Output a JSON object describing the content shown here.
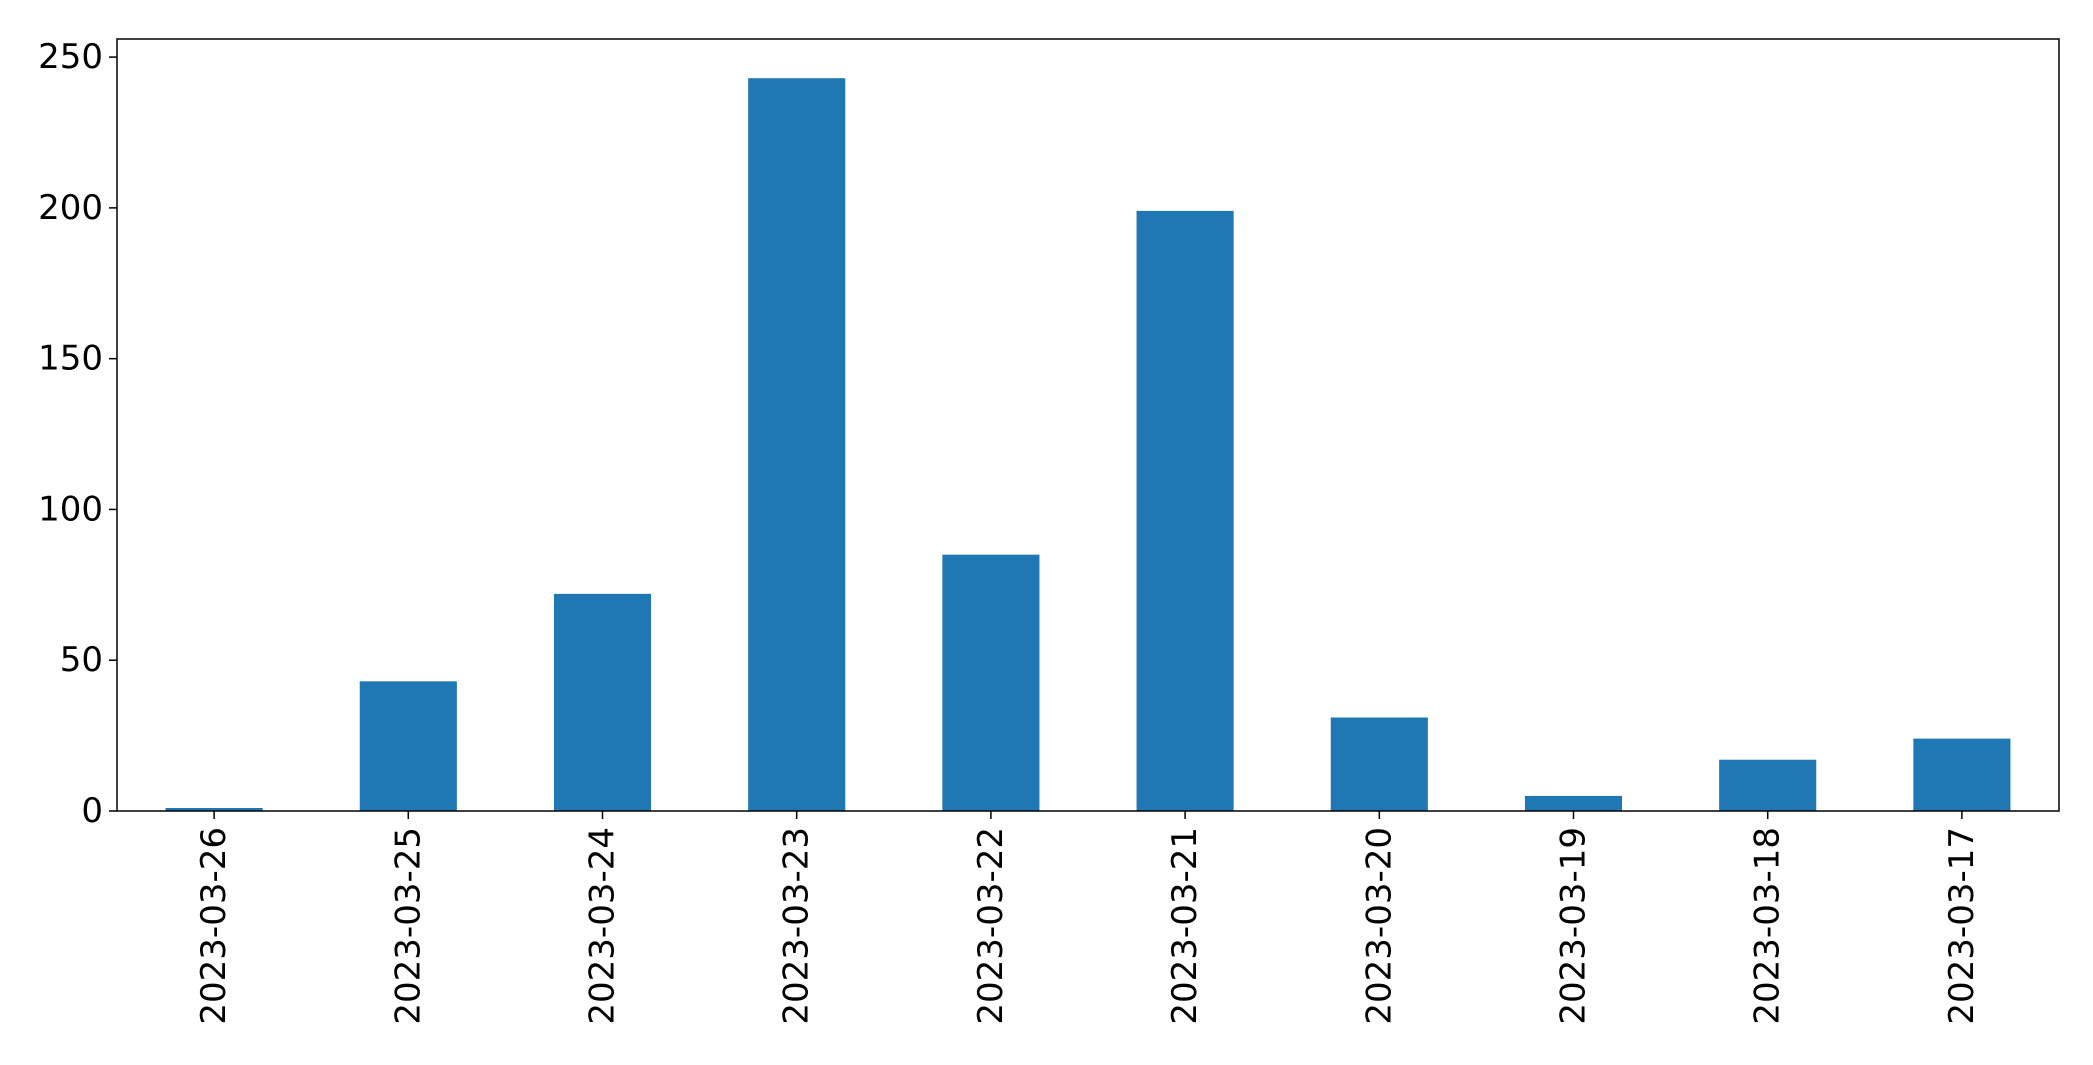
{
  "chart_data": {
    "type": "bar",
    "title": "",
    "xlabel": "",
    "ylabel": "",
    "categories": [
      "2023-03-26",
      "2023-03-25",
      "2023-03-24",
      "2023-03-23",
      "2023-03-22",
      "2023-03-21",
      "2023-03-20",
      "2023-03-19",
      "2023-03-18",
      "2023-03-17"
    ],
    "values": [
      1,
      43,
      72,
      243,
      85,
      199,
      31,
      5,
      17,
      24
    ],
    "ylim": [
      0,
      256
    ],
    "yticks": [
      0,
      50,
      100,
      150,
      200,
      250
    ],
    "grid": false,
    "legend": "none",
    "bar_color": "#1f77b4",
    "axis_color": "#000000"
  }
}
